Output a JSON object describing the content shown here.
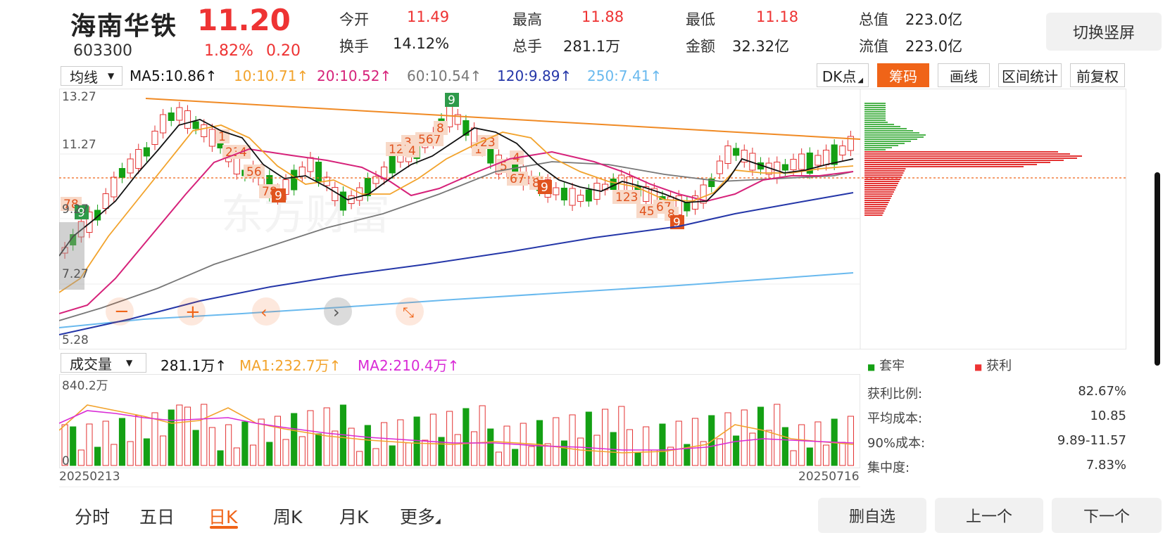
{
  "header": {
    "name": "海南华铁",
    "price": "11.20",
    "code": "603300",
    "change_pct": "1.82%",
    "change": "0.20",
    "stats": [
      {
        "label": "今开",
        "value": "11.49",
        "red": true
      },
      {
        "label": "最高",
        "value": "11.88",
        "red": true
      },
      {
        "label": "最低",
        "value": "11.18",
        "red": true
      },
      {
        "label": "总值",
        "value": "223.0亿",
        "red": false
      },
      {
        "label": "换手",
        "value": "14.12%",
        "red": false
      },
      {
        "label": "总手",
        "value": "281.1万",
        "red": false
      },
      {
        "label": "金额",
        "value": "32.32亿",
        "red": false
      },
      {
        "label": "流值",
        "value": "223.0亿",
        "red": false
      }
    ],
    "switch_button": "切换竖屏"
  },
  "ma_bar": {
    "select": "均线",
    "items": [
      {
        "text": "MA5:10.86↑",
        "color": "#111111"
      },
      {
        "text": "10:10.71↑",
        "color": "#f2a32c"
      },
      {
        "text": "20:10.52↑",
        "color": "#d6227a"
      },
      {
        "text": "60:10.54↑",
        "color": "#777777"
      },
      {
        "text": "120:9.89↑",
        "color": "#2436a8"
      },
      {
        "text": "250:7.41↑",
        "color": "#69b9ee"
      }
    ],
    "tools": [
      "DK点",
      "筹码",
      "画线",
      "区间统计",
      "前复权"
    ]
  },
  "price_axis": [
    "13.27",
    "11.27",
    "9.27",
    "7.27",
    "5.28"
  ],
  "td_labels": [
    "78",
    "9",
    "1",
    "23",
    "4",
    "56",
    "78",
    "9",
    "12",
    "3",
    "4",
    "567",
    "8",
    "9",
    "1",
    "23",
    "4",
    "5",
    "67",
    "8",
    "9",
    "123",
    "45",
    "67",
    "8",
    "9"
  ],
  "volume_bar": {
    "select": "成交量",
    "value": "281.1万↑",
    "ma1": "MA1:232.7万↑",
    "ma2": "MA2:210.4万↑",
    "max_label": "840.2万",
    "zero_label": "0",
    "date_start": "20250213",
    "date_end": "20250716"
  },
  "chip_panel": {
    "legend_trapped": "套牢",
    "legend_profit": "获利",
    "rows": [
      {
        "label": "获利比例:",
        "value": "82.67%"
      },
      {
        "label": "平均成本:",
        "value": "10.85"
      },
      {
        "label": "90%成本:",
        "value": "9.89-11.57"
      },
      {
        "label": "集中度:",
        "value": "7.83%"
      }
    ]
  },
  "tabs": [
    "分时",
    "五日",
    "日K",
    "周K",
    "月K",
    "更多"
  ],
  "active_tab": "日K",
  "bottom_buttons": [
    "删自选",
    "上一个",
    "下一个"
  ],
  "colors": {
    "up": "#e33333",
    "down": "#14a014",
    "accent": "#f06418"
  }
}
